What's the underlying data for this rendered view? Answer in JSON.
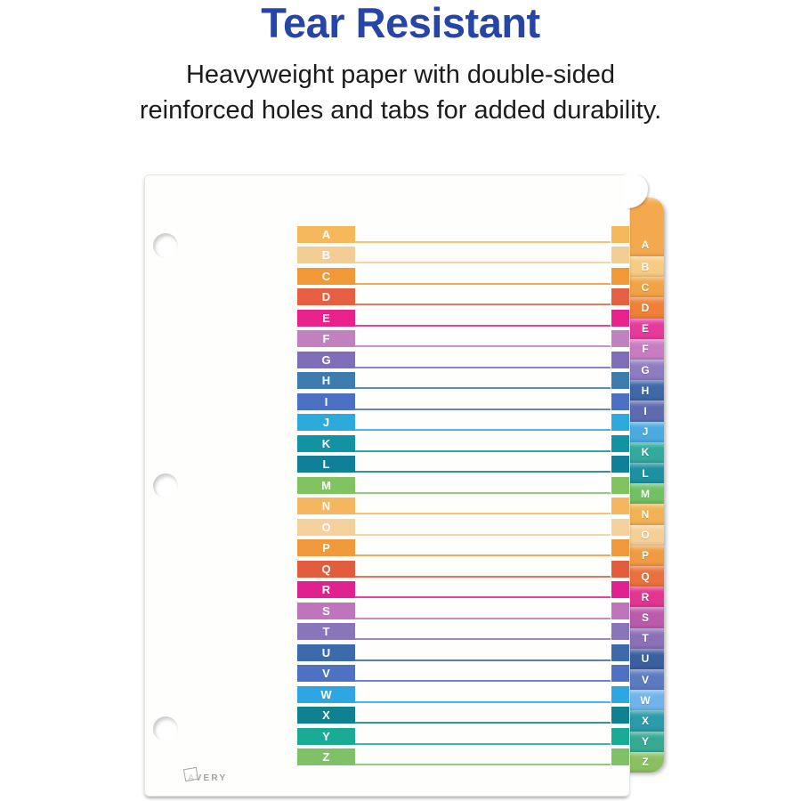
{
  "header": {
    "title": "Tear Resistant",
    "subtitle_line1": "Heavyweight paper with double-sided",
    "subtitle_line2": "reinforced holes and tabs for added durability."
  },
  "colors": {
    "title_blue": "#2745A7",
    "subtitle_black": "#1C1C1E",
    "paper_white": "#FEFEFD"
  },
  "brand": {
    "logo_text": "AVERY"
  },
  "index_rows": [
    {
      "letter": "A",
      "row_color": "#F5B95B",
      "tab_color": "#F4A94E"
    },
    {
      "letter": "B",
      "row_color": "#F2CE94",
      "tab_color": "#F6CB84"
    },
    {
      "letter": "C",
      "row_color": "#F09936",
      "tab_color": "#F1A346"
    },
    {
      "letter": "D",
      "row_color": "#E65F43",
      "tab_color": "#EF8136"
    },
    {
      "letter": "E",
      "row_color": "#E8218D",
      "tab_color": "#E63A9C"
    },
    {
      "letter": "F",
      "row_color": "#C180BE",
      "tab_color": "#C87CC1"
    },
    {
      "letter": "G",
      "row_color": "#7F6DB9",
      "tab_color": "#8E7CC1"
    },
    {
      "letter": "H",
      "row_color": "#3E7BAF",
      "tab_color": "#3E68A6"
    },
    {
      "letter": "I",
      "row_color": "#4C71C2",
      "tab_color": "#5E6BAF"
    },
    {
      "letter": "J",
      "row_color": "#2BAADB",
      "tab_color": "#4BAAE0"
    },
    {
      "letter": "K",
      "row_color": "#1292A3",
      "tab_color": "#33A99C"
    },
    {
      "letter": "L",
      "row_color": "#107F99",
      "tab_color": "#1D90A1"
    },
    {
      "letter": "M",
      "row_color": "#7FC460",
      "tab_color": "#70C064"
    },
    {
      "letter": "N",
      "row_color": "#F4B75F",
      "tab_color": "#F2B253"
    },
    {
      "letter": "O",
      "row_color": "#F3D09C",
      "tab_color": "#F5CF97"
    },
    {
      "letter": "P",
      "row_color": "#F0983C",
      "tab_color": "#F09B41"
    },
    {
      "letter": "Q",
      "row_color": "#E25C3E",
      "tab_color": "#E9713D"
    },
    {
      "letter": "R",
      "row_color": "#E02190",
      "tab_color": "#E1358F"
    },
    {
      "letter": "S",
      "row_color": "#BF75BB",
      "tab_color": "#BB5BAB"
    },
    {
      "letter": "T",
      "row_color": "#8975B9",
      "tab_color": "#8B70B6"
    },
    {
      "letter": "U",
      "row_color": "#3C6AAB",
      "tab_color": "#3B5F9F"
    },
    {
      "letter": "V",
      "row_color": "#4E71C1",
      "tab_color": "#5D7ABF"
    },
    {
      "letter": "W",
      "row_color": "#2DA6E3",
      "tab_color": "#70B4E9"
    },
    {
      "letter": "X",
      "row_color": "#10818F",
      "tab_color": "#2B9AA9"
    },
    {
      "letter": "Y",
      "row_color": "#19AB96",
      "tab_color": "#36A994"
    },
    {
      "letter": "Z",
      "row_color": "#7EC166",
      "tab_color": "#8BC061"
    }
  ]
}
